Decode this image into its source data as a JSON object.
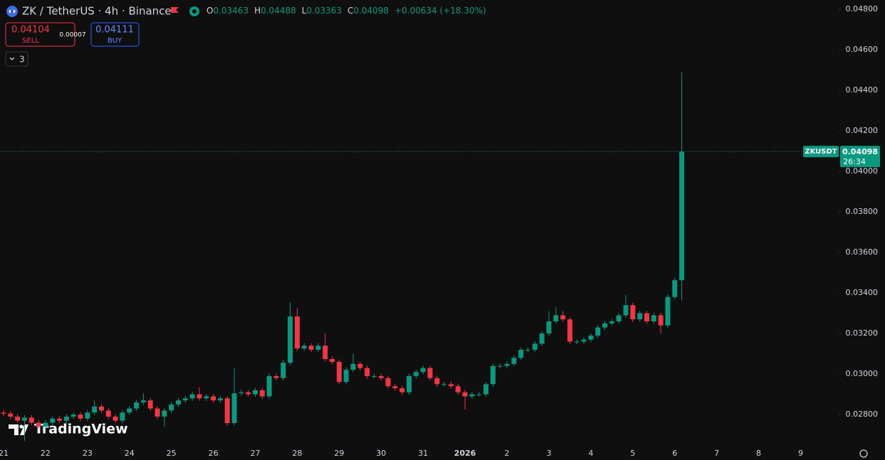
{
  "header": {
    "symbol": "ZK / TetherUS · 4h · Binance",
    "ohlc": [
      {
        "label": "O",
        "value": "0.03463"
      },
      {
        "label": "H",
        "value": "0.04488"
      },
      {
        "label": "L",
        "value": "0.03363"
      },
      {
        "label": "C",
        "value": "0.04098"
      }
    ],
    "change": "+0.00634 (+18.30%)"
  },
  "trade": {
    "sell_price": "0.04104",
    "sell_label": "SELL",
    "spread": "0.00007",
    "buy_price": "0.04111",
    "buy_label": "BUY"
  },
  "indicators_count": "3",
  "branding": "TradingView",
  "chart_data": {
    "type": "candlestick",
    "categories": [
      "21",
      null,
      null,
      null,
      null,
      null,
      "22",
      null,
      null,
      null,
      null,
      null,
      "23",
      null,
      null,
      null,
      null,
      null,
      "24",
      null,
      null,
      null,
      null,
      null,
      "25",
      null,
      null,
      null,
      null,
      null,
      "26",
      null,
      null,
      null,
      null,
      null,
      "27",
      null,
      null,
      null,
      null,
      null,
      "28",
      null,
      null,
      null,
      null,
      null,
      "29",
      null,
      null,
      null,
      null,
      null,
      "30",
      null,
      null,
      null,
      null,
      null,
      "31",
      null,
      null,
      null,
      null,
      null,
      "2026",
      null,
      null,
      null,
      null,
      null,
      "2",
      null,
      null,
      null,
      null,
      null,
      "3",
      null,
      null,
      null,
      null,
      null,
      "4",
      null,
      null,
      null,
      null,
      null,
      "5",
      null,
      null,
      null,
      null,
      null,
      "6",
      null
    ],
    "future_x_labels": [
      "7",
      "8",
      "9"
    ],
    "open": [
      0.0281,
      0.02805,
      0.0279,
      0.0277,
      0.02785,
      0.0276,
      0.0274,
      0.0276,
      0.0278,
      0.0277,
      0.0279,
      0.028,
      0.0278,
      0.0281,
      0.0284,
      0.0282,
      0.0279,
      0.0277,
      0.0281,
      0.0283,
      0.0286,
      0.0287,
      0.0283,
      0.0279,
      0.0282,
      0.0285,
      0.0287,
      0.0288,
      0.029,
      0.0288,
      0.0289,
      0.0287,
      0.0288,
      0.02758,
      0.02905,
      0.0291,
      0.029,
      0.0292,
      0.0289,
      0.0299,
      0.0298,
      0.03056,
      0.03284,
      0.03126,
      0.0314,
      0.0312,
      0.0314,
      0.03074,
      0.0306,
      0.02961,
      0.03021,
      0.0305,
      0.0303,
      0.0299,
      0.0299,
      0.0298,
      0.0294,
      0.0293,
      0.0291,
      0.0299,
      0.0301,
      0.0303,
      0.0298,
      0.0295,
      0.0295,
      0.0294,
      0.0291,
      0.0289,
      0.029,
      0.029,
      0.0295,
      0.0304,
      0.0304,
      0.0305,
      0.0308,
      0.0312,
      0.0312,
      0.0315,
      0.032,
      0.0326,
      0.0329,
      0.0327,
      0.0316,
      0.0316,
      0.0317,
      0.0319,
      0.0323,
      0.0325,
      0.0326,
      0.0329,
      0.0334,
      0.0327,
      0.033,
      0.0326,
      0.0329,
      0.0324,
      0.0338,
      0.03463
    ],
    "high": [
      0.02825,
      0.02818,
      0.02802,
      0.02797,
      0.02797,
      0.02772,
      0.02775,
      0.02792,
      0.02792,
      0.02802,
      0.02812,
      0.02812,
      0.02822,
      0.0287,
      0.02852,
      0.02832,
      0.02802,
      0.02822,
      0.02842,
      0.02872,
      0.02905,
      0.02882,
      0.02842,
      0.02832,
      0.02862,
      0.02882,
      0.02892,
      0.02912,
      0.02935,
      0.02902,
      0.02902,
      0.02892,
      0.02892,
      0.03028,
      0.02922,
      0.02922,
      0.02932,
      0.02932,
      0.03002,
      0.03002,
      0.0307,
      0.03354,
      0.03325,
      0.03152,
      0.03152,
      0.03152,
      0.032,
      0.03086,
      0.03072,
      0.03033,
      0.031,
      0.03062,
      0.03042,
      0.03002,
      0.03002,
      0.02992,
      0.02952,
      0.02942,
      0.03002,
      0.03022,
      0.03042,
      0.03042,
      0.02992,
      0.02962,
      0.02962,
      0.02952,
      0.02922,
      0.02912,
      0.02912,
      0.02962,
      0.03052,
      0.03052,
      0.03062,
      0.03092,
      0.03132,
      0.03132,
      0.03162,
      0.03212,
      0.0331,
      0.0333,
      0.03312,
      0.03282,
      0.03172,
      0.03182,
      0.03202,
      0.03242,
      0.03262,
      0.03272,
      0.03302,
      0.0339,
      0.03352,
      0.03312,
      0.03312,
      0.03302,
      0.03302,
      0.03392,
      0.03475,
      0.04488
    ],
    "low": [
      0.02793,
      0.02778,
      0.02758,
      0.0267,
      0.02748,
      0.02728,
      0.02728,
      0.02748,
      0.02758,
      0.02758,
      0.02778,
      0.02768,
      0.02768,
      0.02798,
      0.02808,
      0.02778,
      0.02758,
      0.02758,
      0.02798,
      0.02818,
      0.02848,
      0.02818,
      0.02778,
      0.0274,
      0.02808,
      0.02838,
      0.02858,
      0.02868,
      0.02868,
      0.02868,
      0.02858,
      0.02858,
      0.02746,
      0.02746,
      0.02893,
      0.02888,
      0.02888,
      0.02878,
      0.02878,
      0.02968,
      0.02968,
      0.03044,
      0.03114,
      0.03114,
      0.03108,
      0.03108,
      0.03062,
      0.03048,
      0.02949,
      0.02949,
      0.03009,
      0.03018,
      0.02978,
      0.02978,
      0.02968,
      0.02928,
      0.02918,
      0.02898,
      0.02898,
      0.02978,
      0.02998,
      0.02968,
      0.02938,
      0.02938,
      0.02928,
      0.02898,
      0.02825,
      0.02878,
      0.02888,
      0.02888,
      0.02938,
      0.03028,
      0.03028,
      0.03038,
      0.03068,
      0.03108,
      0.03108,
      0.03138,
      0.03188,
      0.03248,
      0.03258,
      0.03148,
      0.03148,
      0.03148,
      0.03158,
      0.03178,
      0.03218,
      0.03238,
      0.03248,
      0.03278,
      0.03258,
      0.03258,
      0.03248,
      0.03248,
      0.032,
      0.03228,
      0.03368,
      0.03363
    ],
    "close": [
      0.02805,
      0.0279,
      0.0277,
      0.02785,
      0.0276,
      0.0274,
      0.0276,
      0.0278,
      0.0277,
      0.0279,
      0.028,
      0.0278,
      0.0281,
      0.0284,
      0.0282,
      0.0279,
      0.0277,
      0.0281,
      0.0283,
      0.0286,
      0.0287,
      0.0283,
      0.0279,
      0.0282,
      0.0285,
      0.0287,
      0.0288,
      0.029,
      0.0288,
      0.0289,
      0.0287,
      0.0288,
      0.02758,
      0.02905,
      0.0291,
      0.029,
      0.0292,
      0.0289,
      0.0299,
      0.0298,
      0.03056,
      0.03284,
      0.03126,
      0.0314,
      0.0312,
      0.0314,
      0.03074,
      0.0306,
      0.02961,
      0.03021,
      0.0305,
      0.0303,
      0.0299,
      0.0299,
      0.0298,
      0.0294,
      0.0293,
      0.0291,
      0.0299,
      0.0301,
      0.0303,
      0.0298,
      0.0295,
      0.0295,
      0.0294,
      0.0291,
      0.0289,
      0.029,
      0.029,
      0.0295,
      0.0304,
      0.0304,
      0.0305,
      0.0308,
      0.0312,
      0.0312,
      0.0315,
      0.032,
      0.0326,
      0.0329,
      0.0327,
      0.0316,
      0.0316,
      0.0317,
      0.0319,
      0.0323,
      0.0325,
      0.0326,
      0.0329,
      0.0334,
      0.0327,
      0.033,
      0.0326,
      0.0329,
      0.0324,
      0.0338,
      0.03463,
      0.04098
    ],
    "up_color": "#089981",
    "down_color": "#f23645",
    "ylim": [
      0.02653,
      0.04846
    ],
    "yticks": [
      {
        "value": 0.028,
        "label": "0.02800"
      },
      {
        "value": 0.03,
        "label": "0.03000"
      },
      {
        "value": 0.032,
        "label": "0.03200"
      },
      {
        "value": 0.034,
        "label": "0.03400"
      },
      {
        "value": 0.036,
        "label": "0.03600"
      },
      {
        "value": 0.038,
        "label": "0.03800"
      },
      {
        "value": 0.04,
        "label": "0.04000"
      },
      {
        "value": 0.042,
        "label": "0.04200"
      },
      {
        "value": 0.044,
        "label": "0.04400"
      },
      {
        "value": 0.046,
        "label": "0.04600"
      },
      {
        "value": 0.048,
        "label": "0.04800"
      }
    ],
    "grid": false,
    "price_line": {
      "label": "ZKUSDT",
      "value": 0.04098,
      "countdown": "26:34"
    }
  }
}
